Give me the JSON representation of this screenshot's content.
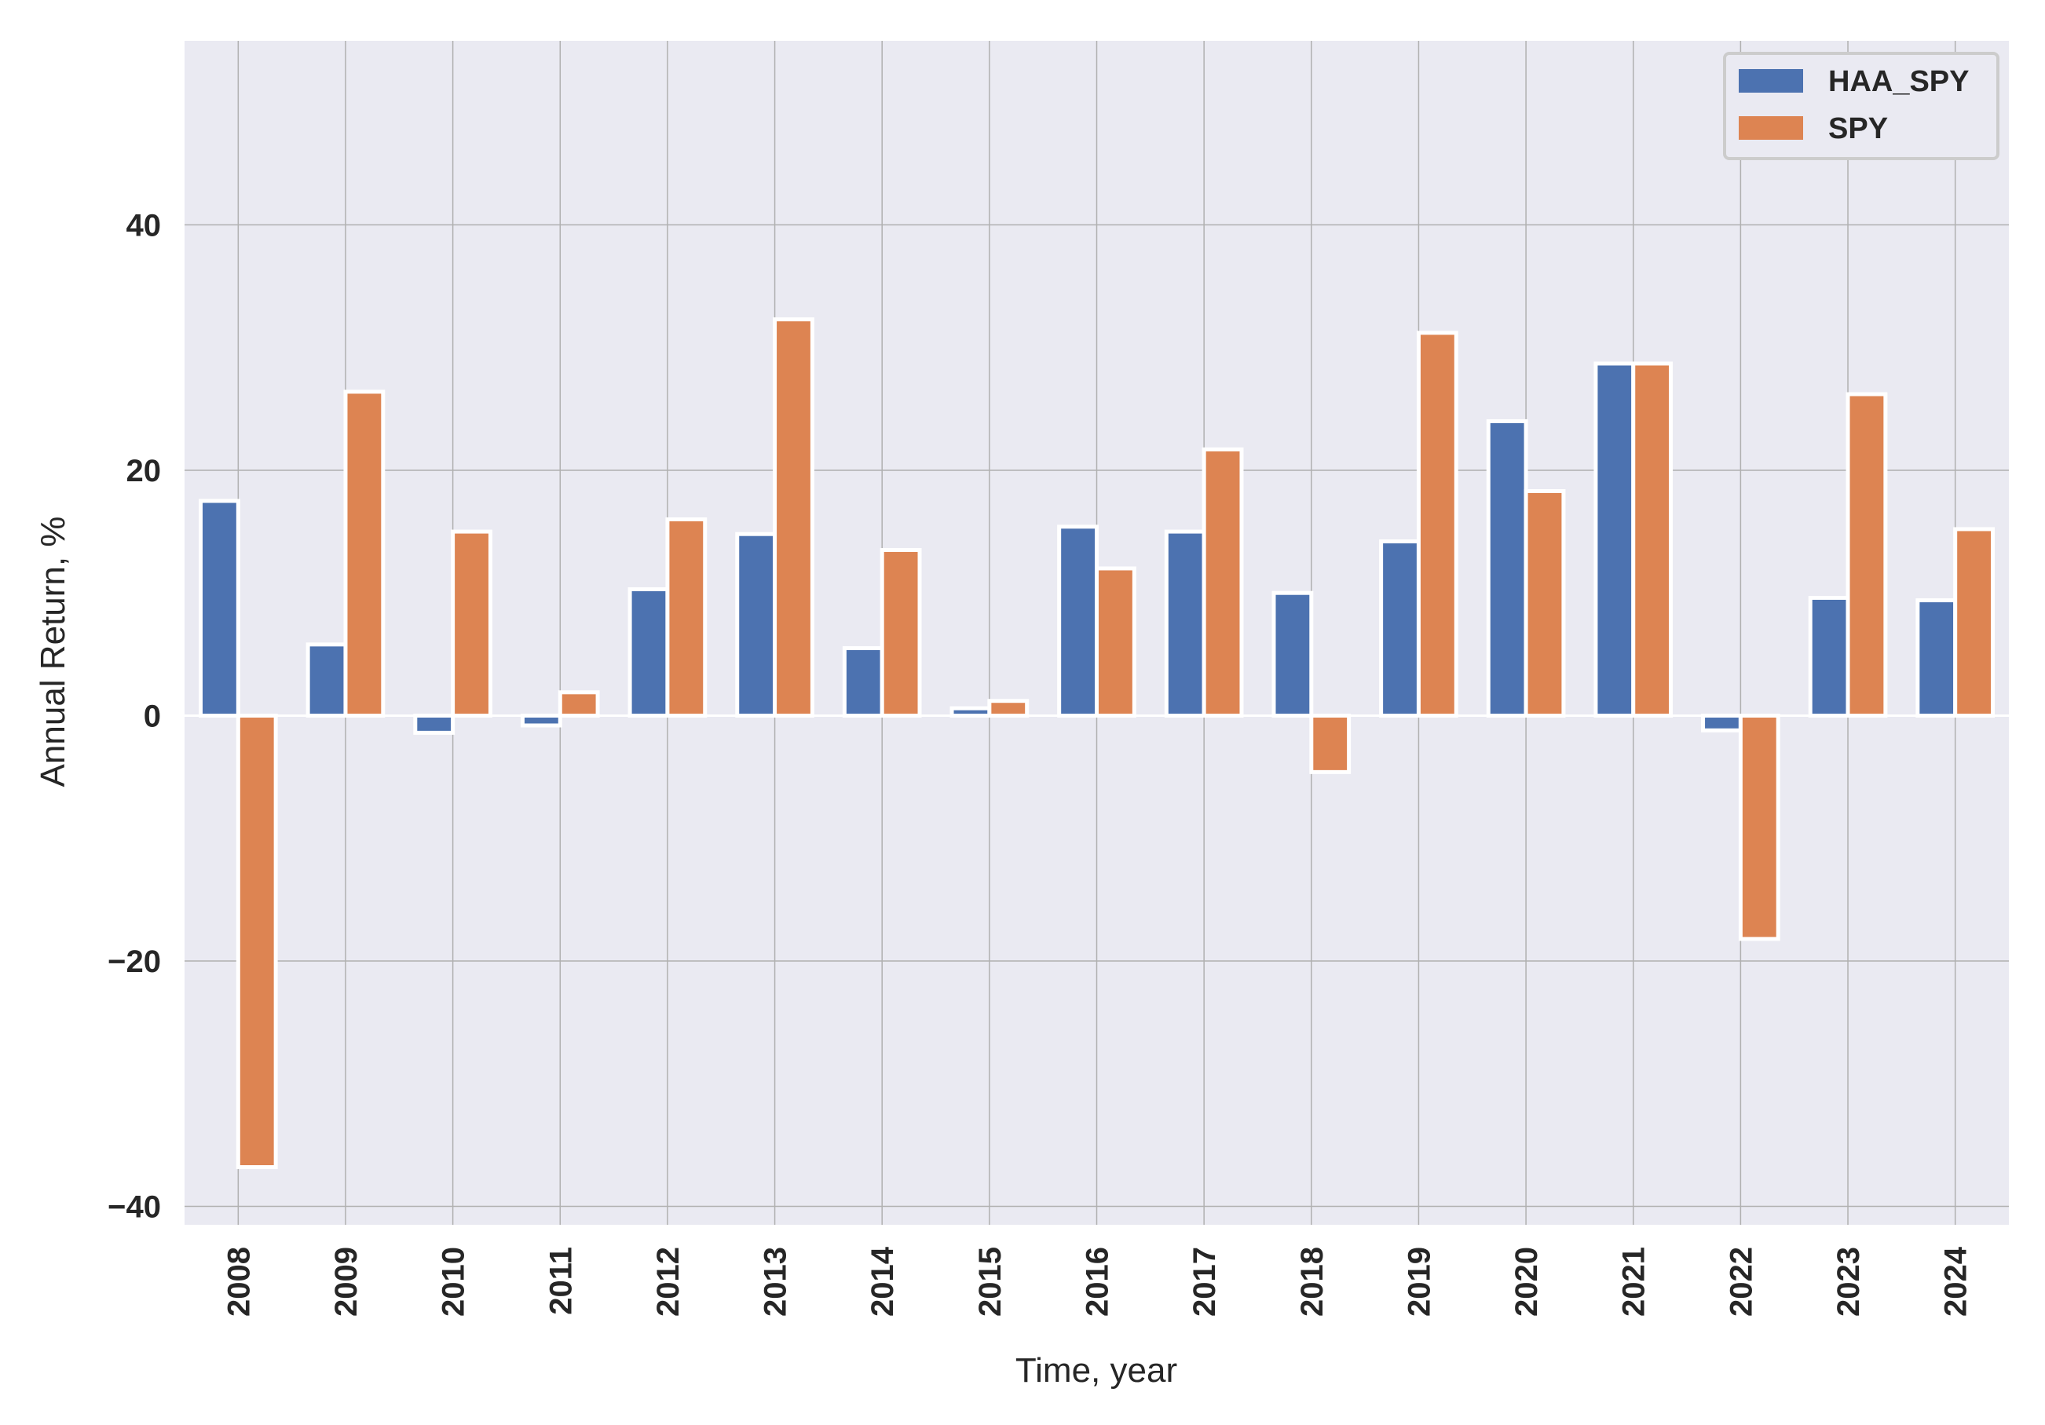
{
  "chart_data": {
    "type": "bar",
    "categories": [
      "2008",
      "2009",
      "2010",
      "2011",
      "2012",
      "2013",
      "2014",
      "2015",
      "2016",
      "2017",
      "2018",
      "2019",
      "2020",
      "2021",
      "2022",
      "2023",
      "2024"
    ],
    "series": [
      {
        "name": "HAA_SPY",
        "color": "#4c72b0",
        "values": [
          17.5,
          5.8,
          -1.4,
          -0.8,
          10.3,
          14.8,
          5.5,
          0.6,
          15.4,
          15.0,
          10.0,
          14.2,
          24.0,
          28.7,
          -1.2,
          9.6,
          9.4
        ]
      },
      {
        "name": "SPY",
        "color": "#dd8452",
        "values": [
          -36.8,
          26.4,
          15.0,
          1.9,
          16.0,
          32.3,
          13.5,
          1.2,
          12.0,
          21.7,
          -4.6,
          31.2,
          18.3,
          28.7,
          -18.2,
          26.2,
          15.2
        ]
      }
    ],
    "title": "",
    "xlabel": "Time, year",
    "ylabel": "Annual Return, %",
    "ylim": [
      -41.5,
      55
    ],
    "yticks": [
      -40,
      -20,
      0,
      20,
      40
    ],
    "ytick_labels": [
      "−40",
      "−20",
      "0",
      "20",
      "40"
    ],
    "grid": true,
    "legend": "top-right",
    "background": "#eaeaf2",
    "grid_color": "#b0b0b0"
  }
}
